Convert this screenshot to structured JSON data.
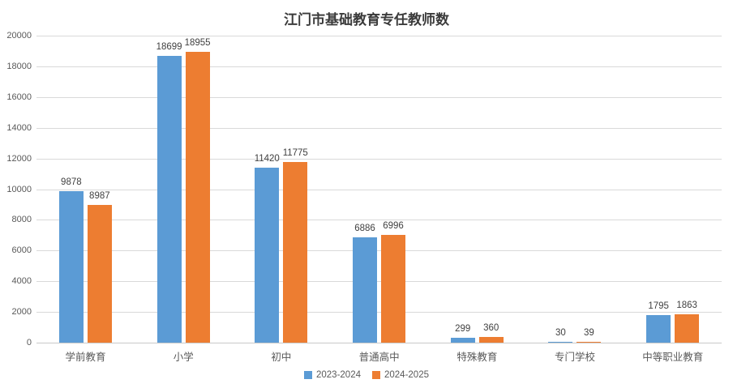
{
  "chart_data": {
    "type": "bar",
    "title": "江门市基础教育专任教师数",
    "categories": [
      "学前教育",
      "小学",
      "初中",
      "普通高中",
      "特殊教育",
      "专门学校",
      "中等职业教育"
    ],
    "series": [
      {
        "name": "2023-2024",
        "color": "#5B9BD5",
        "values": [
          9878,
          18699,
          11420,
          6886,
          299,
          30,
          1795
        ]
      },
      {
        "name": "2024-2025",
        "color": "#ED7D31",
        "values": [
          8987,
          18955,
          11775,
          6996,
          360,
          39,
          1863
        ]
      }
    ],
    "ylim": [
      0,
      20000
    ],
    "ytick_step": 2000,
    "yticks": [
      0,
      2000,
      4000,
      6000,
      8000,
      10000,
      12000,
      14000,
      16000,
      18000,
      20000
    ],
    "grid": true,
    "legend_position": "bottom",
    "colors": {
      "gridline": "#d9d9d9",
      "tick_text": "#595959",
      "value_label_text": "#404040",
      "title_text": "#3b3b3b",
      "background": "#ffffff"
    }
  }
}
